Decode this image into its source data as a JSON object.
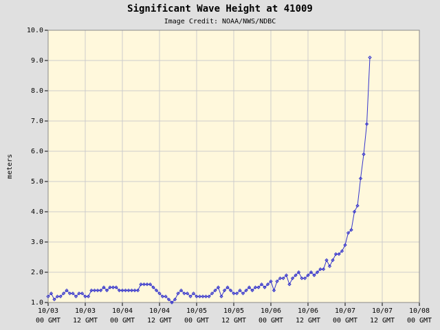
{
  "chart_data": {
    "type": "line",
    "title": "Significant Wave Height at 41009",
    "subtitle": "Image Credit: NOAA/NWS/NDBC",
    "y_label": "meters",
    "color": "#3333cc",
    "grid": true,
    "x": [
      0,
      1,
      2,
      3,
      4,
      5,
      6,
      7,
      8,
      9,
      10,
      11,
      12,
      13,
      14,
      15,
      16,
      17,
      18,
      19,
      20,
      21,
      22,
      23,
      24,
      25,
      26,
      27,
      28,
      29,
      30,
      31,
      32,
      33,
      34,
      35,
      36,
      37,
      38,
      39,
      40,
      41,
      42,
      43,
      44,
      45,
      46,
      47,
      48,
      49,
      50,
      51,
      52,
      53,
      54,
      55,
      56,
      57,
      58,
      59,
      60,
      61,
      62,
      63,
      64,
      65,
      66,
      67,
      68,
      69,
      70,
      71,
      72,
      73,
      74,
      75,
      76,
      77,
      78,
      79,
      80,
      81,
      82,
      83,
      84,
      85,
      86,
      87,
      88,
      89,
      90,
      91,
      92,
      93,
      94,
      95,
      96,
      97,
      98,
      99,
      100,
      101,
      102,
      103,
      104
    ],
    "values": [
      1.2,
      1.3,
      1.1,
      1.2,
      1.2,
      1.3,
      1.4,
      1.3,
      1.3,
      1.2,
      1.3,
      1.3,
      1.2,
      1.2,
      1.4,
      1.4,
      1.4,
      1.4,
      1.5,
      1.4,
      1.5,
      1.5,
      1.5,
      1.4,
      1.4,
      1.4,
      1.4,
      1.4,
      1.4,
      1.4,
      1.6,
      1.6,
      1.6,
      1.6,
      1.5,
      1.4,
      1.3,
      1.2,
      1.2,
      1.1,
      1.0,
      1.1,
      1.3,
      1.4,
      1.3,
      1.3,
      1.2,
      1.3,
      1.2,
      1.2,
      1.2,
      1.2,
      1.2,
      1.3,
      1.4,
      1.5,
      1.2,
      1.4,
      1.5,
      1.4,
      1.3,
      1.3,
      1.4,
      1.3,
      1.4,
      1.5,
      1.4,
      1.5,
      1.5,
      1.6,
      1.5,
      1.6,
      1.7,
      1.4,
      1.7,
      1.8,
      1.8,
      1.9,
      1.6,
      1.8,
      1.9,
      2.0,
      1.8,
      1.8,
      1.9,
      2.0,
      1.9,
      2.0,
      2.1,
      2.1,
      2.4,
      2.2,
      2.4,
      2.6,
      2.6,
      2.7,
      2.9,
      3.3,
      3.4,
      4.0,
      4.2,
      5.1,
      5.9,
      6.9,
      9.1
    ],
    "xlim": [
      0,
      120
    ],
    "xticks": [
      {
        "value": 0,
        "label": "10/03\n00 GMT"
      },
      {
        "value": 12,
        "label": "10/03\n12 GMT"
      },
      {
        "value": 24,
        "label": "10/04\n00 GMT"
      },
      {
        "value": 36,
        "label": "10/04\n12 GMT"
      },
      {
        "value": 48,
        "label": "10/05\n00 GMT"
      },
      {
        "value": 60,
        "label": "10/05\n12 GMT"
      },
      {
        "value": 72,
        "label": "10/06\n00 GMT"
      },
      {
        "value": 84,
        "label": "10/06\n12 GMT"
      },
      {
        "value": 96,
        "label": "10/07\n00 GMT"
      },
      {
        "value": 108,
        "label": "10/07\n12 GMT"
      },
      {
        "value": 120,
        "label": "10/08\n00 GMT"
      }
    ],
    "ylim": [
      1,
      10
    ],
    "yticks": [
      {
        "value": 1,
        "label": "1.0"
      },
      {
        "value": 2,
        "label": "2.0"
      },
      {
        "value": 3,
        "label": "3.0"
      },
      {
        "value": 4,
        "label": "4.0"
      },
      {
        "value": 5,
        "label": "5.0"
      },
      {
        "value": 6,
        "label": "6.0"
      },
      {
        "value": 7,
        "label": "7.0"
      },
      {
        "value": 8,
        "label": "8.0"
      },
      {
        "value": 9,
        "label": "9.0"
      },
      {
        "value": 10,
        "label": "10.0"
      }
    ]
  }
}
